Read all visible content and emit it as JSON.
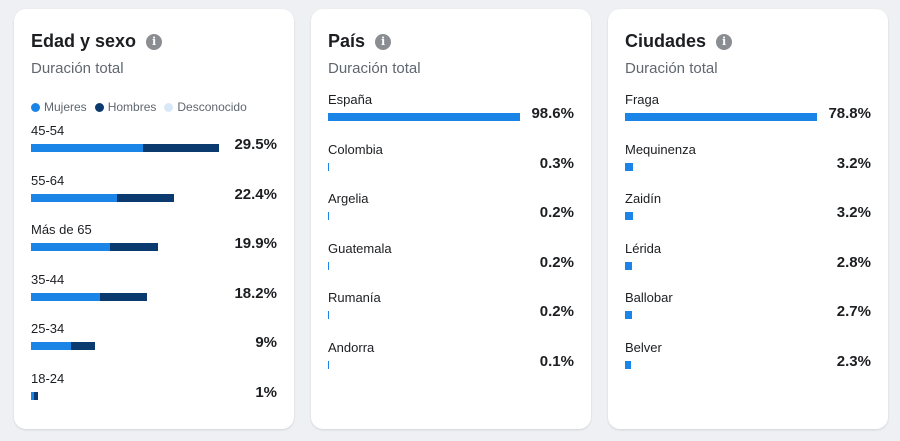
{
  "colors": {
    "mujeres": "#1b84e7",
    "hombres": "#0a3a6e",
    "desconocido": "#d9e8f8",
    "bar": "#1b84e7"
  },
  "age_gender": {
    "title": "Edad y sexo",
    "subtitle": "Duración total",
    "info_icon": "info-icon",
    "legend": [
      {
        "label": "Mujeres",
        "key": "mujeres"
      },
      {
        "label": "Hombres",
        "key": "hombres"
      },
      {
        "label": "Desconocido",
        "key": "desconocido"
      }
    ],
    "rows": [
      {
        "label": "45-54",
        "value": "29.5%",
        "mujeres": 17.6,
        "hombres": 11.9
      },
      {
        "label": "55-64",
        "value": "22.4%",
        "mujeres": 13.5,
        "hombres": 8.9
      },
      {
        "label": "Más de 65",
        "value": "19.9%",
        "mujeres": 12.4,
        "hombres": 7.5
      },
      {
        "label": "35-44",
        "value": "18.2%",
        "mujeres": 10.8,
        "hombres": 7.4
      },
      {
        "label": "25-34",
        "value": "9%",
        "mujeres": 6.2,
        "hombres": 3.8
      },
      {
        "label": "18-24",
        "value": "1%",
        "mujeres": 0.5,
        "hombres": 0.6
      }
    ]
  },
  "countries": {
    "title": "País",
    "subtitle": "Duración total",
    "info_icon": "info-icon",
    "rows": [
      {
        "label": "España",
        "value": "98.6%",
        "pct": 98.6
      },
      {
        "label": "Colombia",
        "value": "0.3%",
        "pct": 0.3
      },
      {
        "label": "Argelia",
        "value": "0.2%",
        "pct": 0.2
      },
      {
        "label": "Guatemala",
        "value": "0.2%",
        "pct": 0.2
      },
      {
        "label": "Rumanía",
        "value": "0.2%",
        "pct": 0.2
      },
      {
        "label": "Andorra",
        "value": "0.1%",
        "pct": 0.1
      }
    ]
  },
  "cities": {
    "title": "Ciudades",
    "subtitle": "Duración total",
    "info_icon": "info-icon",
    "rows": [
      {
        "label": "Fraga",
        "value": "78.8%",
        "pct": 78.8
      },
      {
        "label": "Mequinenza",
        "value": "3.2%",
        "pct": 3.2
      },
      {
        "label": "Zaidín",
        "value": "3.2%",
        "pct": 3.2
      },
      {
        "label": "Lérida",
        "value": "2.8%",
        "pct": 2.8
      },
      {
        "label": "Ballobar",
        "value": "2.7%",
        "pct": 2.7
      },
      {
        "label": "Belver",
        "value": "2.3%",
        "pct": 2.3
      }
    ]
  }
}
